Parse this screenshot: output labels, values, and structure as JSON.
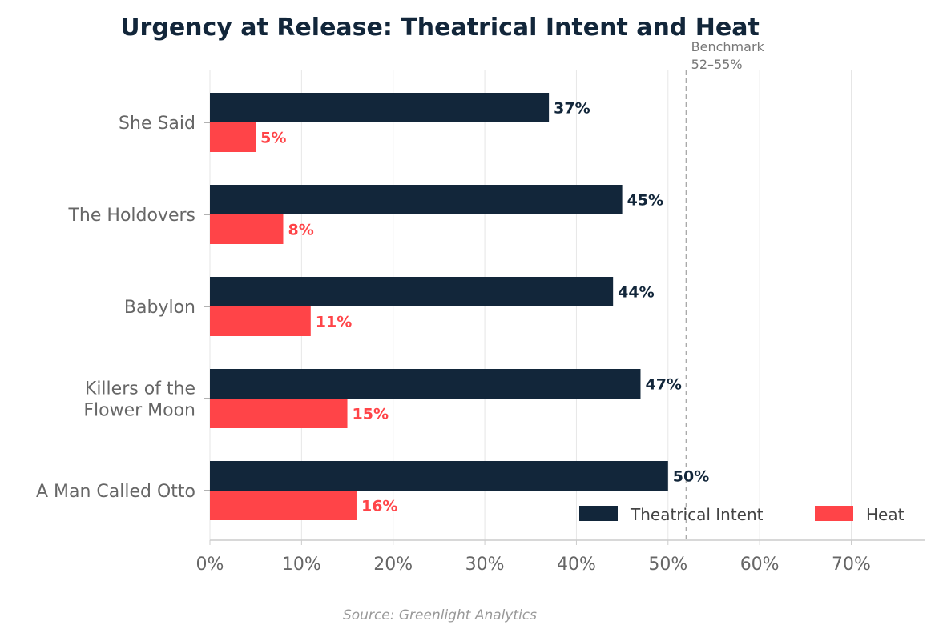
{
  "chart_data": {
    "type": "bar",
    "orientation": "horizontal",
    "title": "Urgency at Release: Theatrical Intent and Heat",
    "categories": [
      "She Said",
      "The Holdovers",
      "Babylon",
      "Killers of the\nFlower Moon",
      "A Man Called Otto"
    ],
    "series": [
      {
        "name": "Theatrical Intent",
        "color": "#12263a",
        "values": [
          37,
          45,
          44,
          47,
          50
        ],
        "labels": [
          "37%",
          "45%",
          "44%",
          "47%",
          "50%"
        ]
      },
      {
        "name": "Heat",
        "color": "#ff4448",
        "values": [
          5,
          8,
          11,
          15,
          16
        ],
        "labels": [
          "5%",
          "8%",
          "11%",
          "15%",
          "16%"
        ]
      }
    ],
    "xlim": [
      0,
      78
    ],
    "xticks": [
      0,
      10,
      20,
      30,
      40,
      50,
      60,
      70
    ],
    "xtick_labels": [
      "0%",
      "10%",
      "20%",
      "30%",
      "40%",
      "50%",
      "60%",
      "70%"
    ],
    "grid": true,
    "benchmark": {
      "value": 52,
      "label_line1": "Benchmark",
      "label_line2": "52–55%"
    },
    "legend": {
      "position": "bottom-right"
    },
    "source": "Source: Greenlight Analytics"
  }
}
